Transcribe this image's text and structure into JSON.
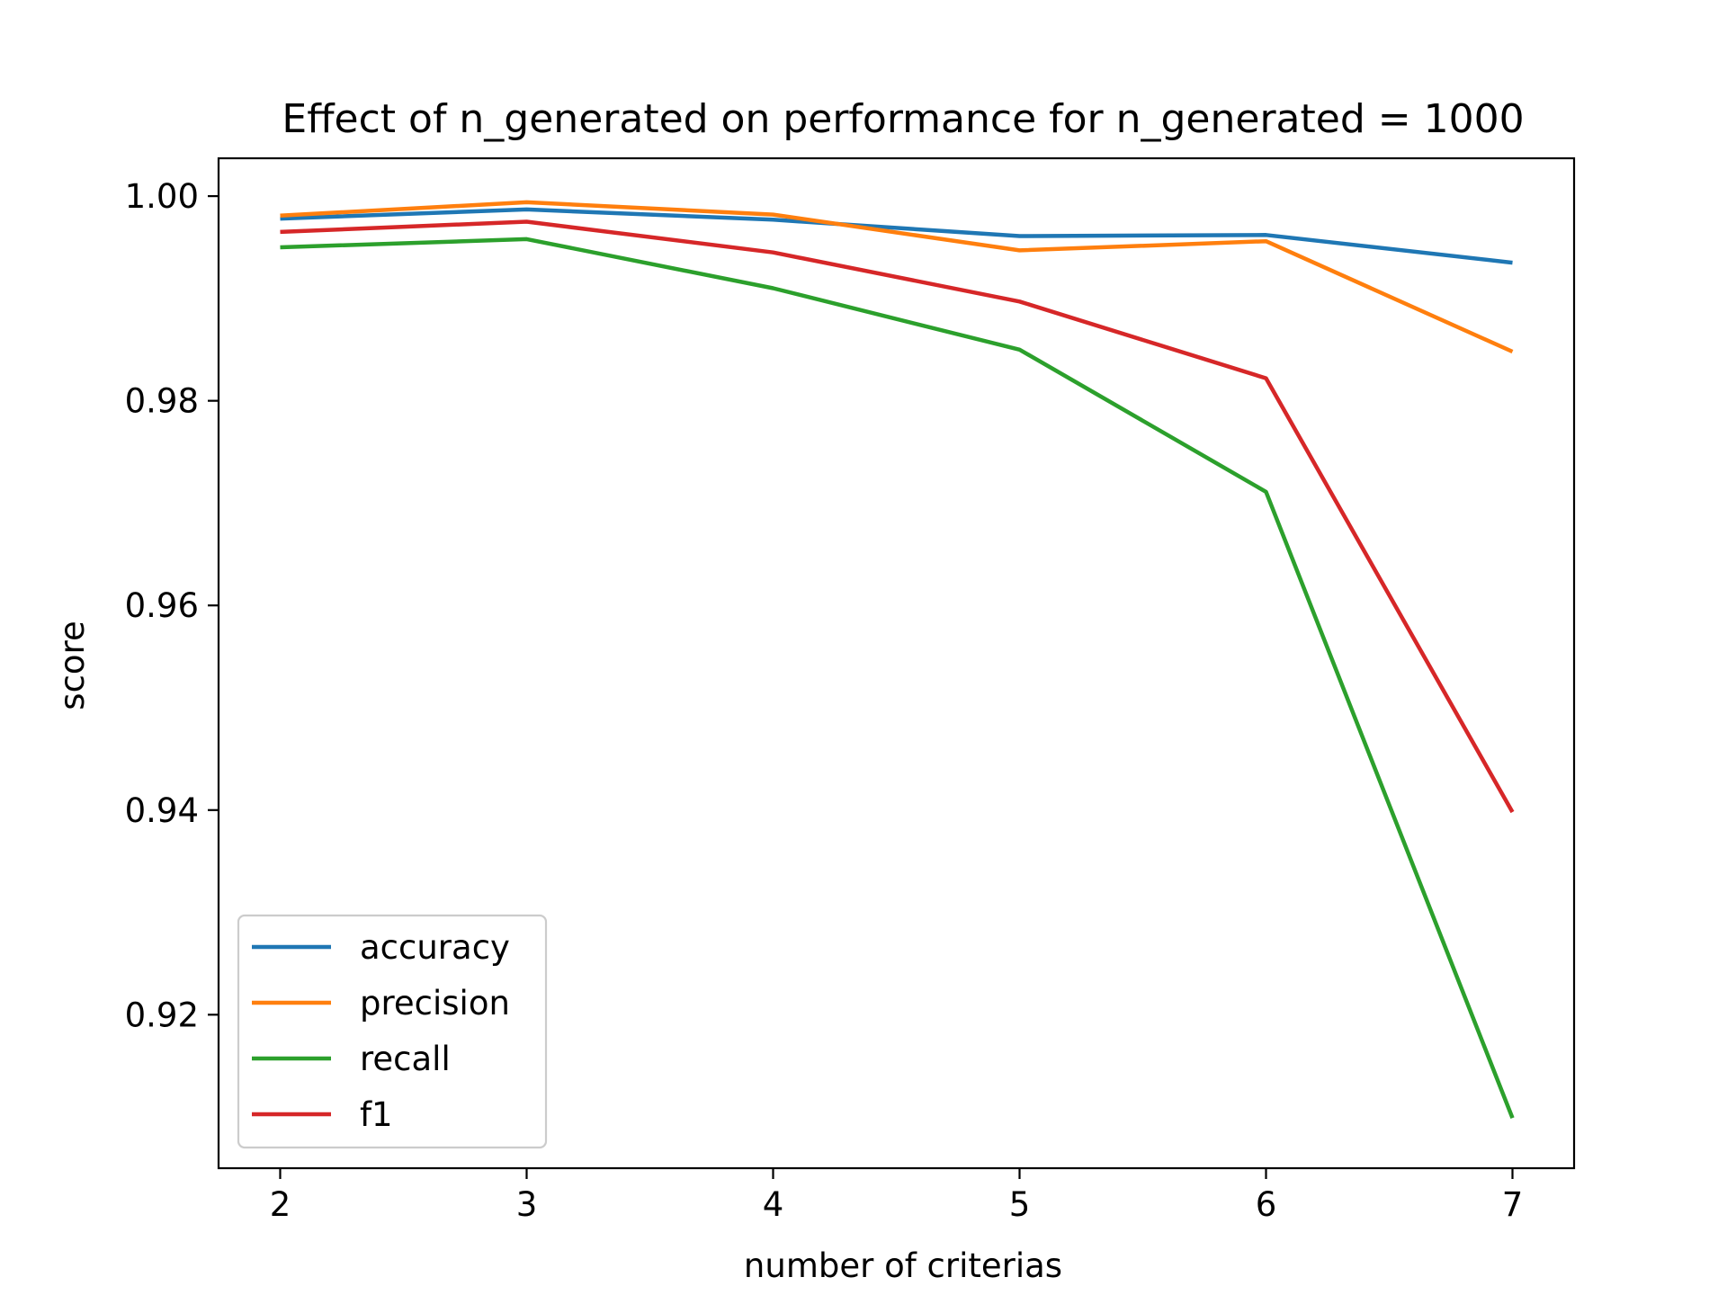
{
  "chart_data": {
    "type": "line",
    "title": "Effect of n_generated on performance for n_generated = 1000",
    "xlabel": "number of criterias",
    "ylabel": "score",
    "x": [
      2,
      3,
      4,
      5,
      6,
      7
    ],
    "xlim": [
      1.75,
      7.25
    ],
    "ylim": [
      0.905,
      1.0037
    ],
    "xticks": [
      2,
      3,
      4,
      5,
      6,
      7
    ],
    "yticks": [
      0.92,
      0.94,
      0.96,
      0.98,
      1.0
    ],
    "ytick_labels": [
      "0.92",
      "0.94",
      "0.96",
      "0.98",
      "1.00"
    ],
    "grid": false,
    "legend_position": "lower-left",
    "series": [
      {
        "name": "accuracy",
        "color": "#1f77b4",
        "values": [
          0.9978,
          0.9987,
          0.9977,
          0.9961,
          0.9962,
          0.9935
        ]
      },
      {
        "name": "precision",
        "color": "#ff7f0e",
        "values": [
          0.9981,
          0.9994,
          0.9982,
          0.9947,
          0.9956,
          0.9848
        ]
      },
      {
        "name": "recall",
        "color": "#2ca02c",
        "values": [
          0.995,
          0.9958,
          0.991,
          0.985,
          0.9711,
          0.9099
        ]
      },
      {
        "name": "f1",
        "color": "#d62728",
        "values": [
          0.9965,
          0.9975,
          0.9945,
          0.9897,
          0.9822,
          0.9398
        ]
      }
    ]
  }
}
